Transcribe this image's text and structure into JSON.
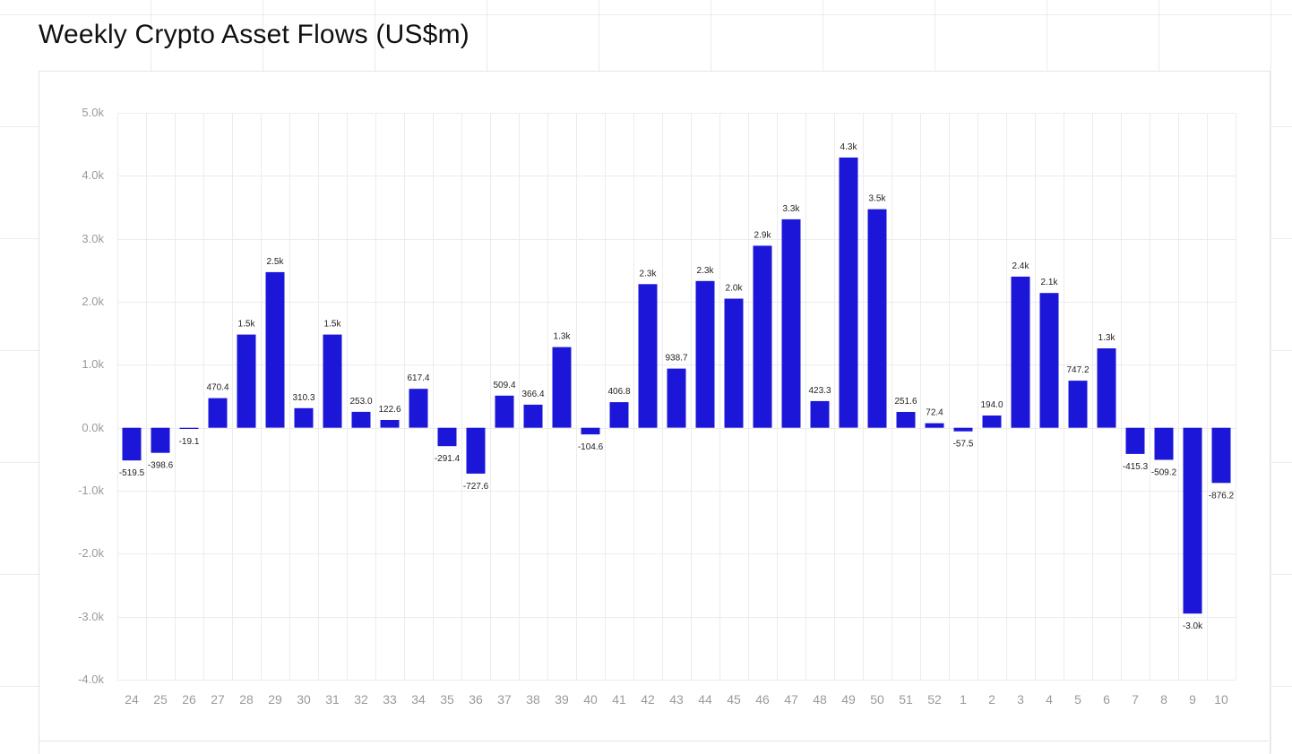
{
  "title": "Weekly Crypto Asset Flows (US$m)",
  "chart_data": {
    "type": "bar",
    "title": "Weekly Crypto Asset Flows (US$m)",
    "xlabel": "",
    "ylabel": "",
    "ylim": [
      -4000,
      5000
    ],
    "y_ticks": [
      5000,
      4000,
      3000,
      2000,
      1000,
      0,
      -1000,
      -2000,
      -3000,
      -4000
    ],
    "y_tick_labels": [
      "5.0k",
      "4.0k",
      "3.0k",
      "2.0k",
      "1.0k",
      "0.0k",
      "-1.0k",
      "-2.0k",
      "-3.0k",
      "-4.0k"
    ],
    "categories": [
      "24",
      "25",
      "26",
      "27",
      "28",
      "29",
      "30",
      "31",
      "32",
      "33",
      "34",
      "35",
      "36",
      "37",
      "38",
      "39",
      "40",
      "41",
      "42",
      "43",
      "44",
      "45",
      "46",
      "47",
      "48",
      "49",
      "50",
      "51",
      "52",
      "1",
      "2",
      "3",
      "4",
      "5",
      "6",
      "7",
      "8",
      "9",
      "10"
    ],
    "values": [
      -519.5,
      -398.6,
      -19.1,
      470.4,
      1480,
      2470,
      310.3,
      1480,
      253.0,
      122.6,
      617.4,
      -291.4,
      -727.6,
      509.4,
      366.4,
      1280,
      -104.6,
      406.8,
      2280,
      938.7,
      2330,
      2050,
      2890,
      3310,
      423.3,
      4290,
      3470,
      251.6,
      72.4,
      -57.5,
      194.0,
      2400,
      2140,
      747.2,
      1260,
      -415.3,
      -509.2,
      -2950,
      -876.2
    ],
    "data_labels": [
      "-519.5",
      "-398.6",
      "-19.1",
      "470.4",
      "1.5k",
      "2.5k",
      "310.3",
      "1.5k",
      "253.0",
      "122.6",
      "617.4",
      "-291.4",
      "-727.6",
      "509.4",
      "366.4",
      "1.3k",
      "-104.6",
      "406.8",
      "2.3k",
      "938.7",
      "2.3k",
      "2.0k",
      "2.9k",
      "3.3k",
      "423.3",
      "4.3k",
      "3.5k",
      "251.6",
      "72.4",
      "-57.5",
      "194.0",
      "2.4k",
      "2.1k",
      "747.2",
      "1.3k",
      "-415.3",
      "-509.2",
      "-3.0k",
      "-876.2"
    ],
    "grid": true,
    "legend": "none",
    "colors": {
      "bar": "#1c17d8",
      "grid": "#ececec",
      "axis_text": "#9a9a9a",
      "label_text": "#222222"
    }
  }
}
